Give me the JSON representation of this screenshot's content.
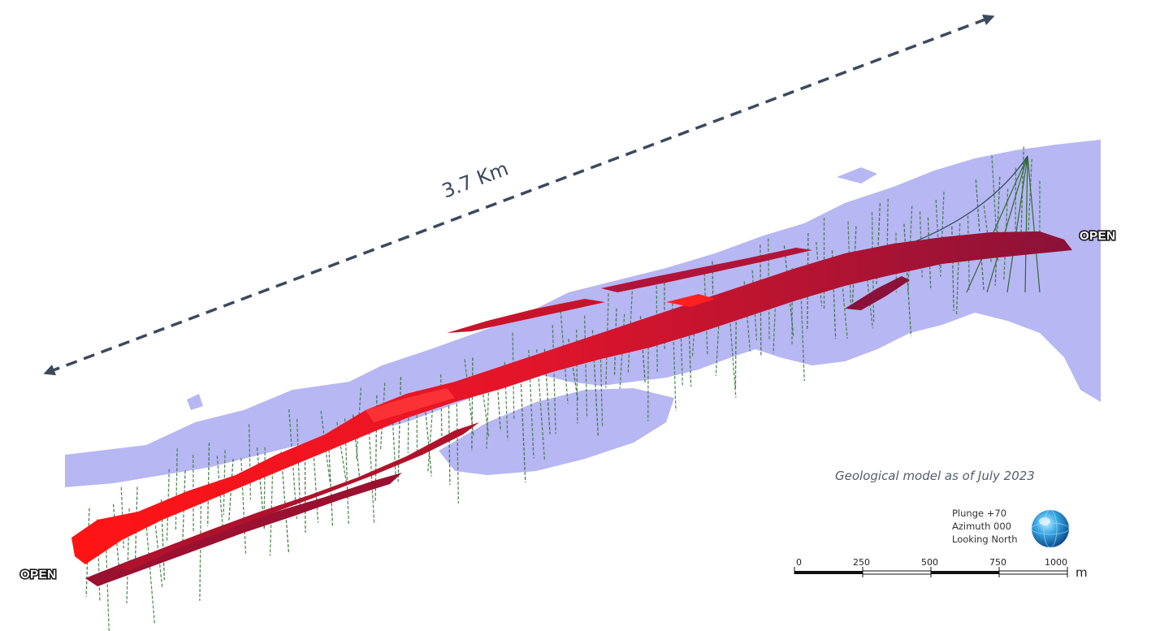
{
  "length_annotation": "3.7 Km",
  "open_labels": {
    "left": "OPEN",
    "right": "OPEN"
  },
  "caption": "Geological model as of July 2023",
  "orientation": {
    "plunge": "Plunge +70",
    "azimuth": "Azimuth 000",
    "looking": "Looking North"
  },
  "scale_bar": {
    "ticks": [
      "0",
      "250",
      "500",
      "750",
      "1000"
    ],
    "unit": "m"
  },
  "colors": {
    "surface": "#b7b7f3",
    "orebody_bright": "#ff1a1a",
    "orebody_dark": "#8e1236",
    "drillhole": "#2f6b2f",
    "arrow": "#3c4a5e"
  }
}
